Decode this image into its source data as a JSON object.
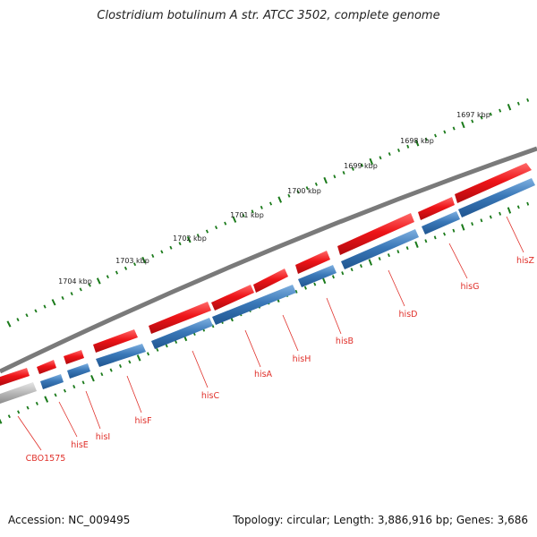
{
  "title": "Clostridium botulinum A str. ATCC 3502, complete genome",
  "accession_text": "Accession: NC_009495",
  "summary_text": "Topology: circular; Length: 3,886,916 bp; Genes: 3,686",
  "colors": {
    "forward": "#e8141a",
    "reverse": "#3a78b8",
    "other": "#b8b8b8",
    "backbone": "#777777",
    "tick": "#1a7a1a",
    "label": "#e0302a"
  },
  "scale_ticks": [
    "1697 kbp",
    "1698 kbp",
    "1699 kbp",
    "1700 kbp",
    "1701 kbp",
    "1702 kbp",
    "1703 kbp",
    "1704 kbp"
  ],
  "genes": [
    {
      "name": "CBO1575"
    },
    {
      "name": "hisE"
    },
    {
      "name": "hisI"
    },
    {
      "name": "hisF"
    },
    {
      "name": "hisC"
    },
    {
      "name": "hisA"
    },
    {
      "name": "hisH"
    },
    {
      "name": "hisB"
    },
    {
      "name": "hisD"
    },
    {
      "name": "hisG"
    },
    {
      "name": "hisZ"
    }
  ]
}
